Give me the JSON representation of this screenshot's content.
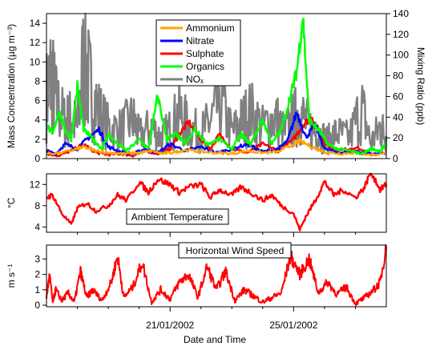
{
  "colors": {
    "ammonium": "#ffa500",
    "nitrate": "#0000ff",
    "sulphate": "#ff0000",
    "organics": "#00ff00",
    "nox": "#808080",
    "temperature": "#ff0000",
    "wind": "#ff0000"
  },
  "xaxis": {
    "label": "Date and Time",
    "ticks": [
      {
        "label": "21/01/2002",
        "x": 4
      },
      {
        "label": "25/01/2002",
        "x": 8
      }
    ],
    "minor_ticks": [
      1,
      2,
      3,
      5,
      6,
      7,
      9,
      10
    ],
    "xlim": [
      0,
      11
    ]
  },
  "chart_data": [
    {
      "type": "line",
      "panel": "aerosol-and-nox",
      "ylabel": "Mass Concentration (µg m⁻³)",
      "y2label": "Mixing Ratio (ppb)",
      "ylim": [
        0,
        15
      ],
      "yticks": [
        "0",
        "2",
        "4",
        "6",
        "8",
        "10",
        "12",
        "14"
      ],
      "y2lim": [
        0,
        140
      ],
      "y2ticks": [
        "0",
        "20",
        "40",
        "60",
        "80",
        "100",
        "120",
        "140"
      ],
      "legend_position": "top-center",
      "series": [
        {
          "name": "Ammonium",
          "axis": "left",
          "color_key": "ammonium",
          "x": [
            0,
            0.5,
            1,
            1.2,
            1.6,
            2,
            2.5,
            3,
            3.4,
            3.8,
            4.2,
            4.5,
            5,
            5.5,
            6,
            6.5,
            7,
            7.5,
            8,
            8.2,
            8.6,
            9,
            9.5,
            10,
            10.4,
            11
          ],
          "y": [
            0.5,
            0.6,
            1.0,
            1.2,
            0.8,
            0.6,
            0.5,
            0.6,
            0.8,
            0.5,
            0.7,
            0.9,
            0.7,
            0.6,
            0.5,
            0.8,
            0.6,
            0.7,
            1.5,
            1.8,
            1.2,
            0.7,
            0.5,
            0.6,
            0.4,
            0.5
          ]
        },
        {
          "name": "Nitrate",
          "axis": "left",
          "color_key": "nitrate",
          "x": [
            0,
            0.3,
            0.6,
            1,
            1.3,
            1.7,
            2,
            2.4,
            2.8,
            3.2,
            3.6,
            4,
            4.5,
            5,
            5.5,
            6,
            6.5,
            7,
            7.5,
            7.8,
            8.1,
            8.4,
            8.7,
            9,
            9.5,
            10,
            10.5,
            11
          ],
          "y": [
            0.8,
            0.5,
            1.5,
            1.0,
            2.0,
            3.0,
            1.2,
            0.7,
            0.5,
            1.0,
            0.6,
            1.5,
            0.8,
            1.2,
            0.6,
            1.0,
            1.5,
            0.7,
            1.0,
            1.8,
            4.8,
            2.2,
            3.5,
            1.0,
            0.6,
            0.8,
            0.5,
            0.6
          ]
        },
        {
          "name": "Sulphate",
          "axis": "left",
          "color_key": "sulphate",
          "x": [
            0,
            0.4,
            0.8,
            1.2,
            1.6,
            2,
            2.4,
            2.8,
            3.2,
            3.6,
            4,
            4.3,
            4.6,
            5,
            5.3,
            5.6,
            6,
            6.5,
            7,
            7.5,
            8,
            8.3,
            8.6,
            9,
            9.5,
            10,
            10.5,
            11
          ],
          "y": [
            0.5,
            0.3,
            0.8,
            1.5,
            0.6,
            0.4,
            0.5,
            0.3,
            0.8,
            0.5,
            1.0,
            2.5,
            3.8,
            2.0,
            1.0,
            2.5,
            1.0,
            0.6,
            1.5,
            0.8,
            2.0,
            3.5,
            4.3,
            1.5,
            0.8,
            1.2,
            0.4,
            0.5
          ]
        },
        {
          "name": "Organics",
          "axis": "left",
          "color_key": "organics",
          "x": [
            0,
            0.2,
            0.4,
            0.6,
            0.8,
            1,
            1.2,
            1.5,
            1.8,
            2,
            2.3,
            2.6,
            3,
            3.3,
            3.6,
            3.9,
            4.2,
            4.5,
            4.8,
            5.2,
            5.6,
            6,
            6.3,
            6.6,
            7,
            7.3,
            7.6,
            7.9,
            8.1,
            8.3,
            8.5,
            8.8,
            9.1,
            9.4,
            9.8,
            10.2,
            10.5,
            10.8,
            11
          ],
          "y": [
            3.5,
            2.5,
            5.0,
            3.0,
            2.0,
            7.5,
            3.0,
            2.0,
            1.0,
            2.5,
            1.5,
            0.8,
            2.0,
            1.0,
            6.5,
            2.0,
            2.5,
            1.5,
            3.0,
            1.5,
            2.0,
            1.0,
            2.5,
            1.5,
            4.0,
            1.5,
            3.0,
            6.5,
            9.0,
            14.8,
            4.0,
            3.0,
            1.5,
            1.0,
            0.8,
            0.5,
            1.0,
            0.8,
            1.5
          ]
        },
        {
          "name": "NOₓ",
          "axis": "right",
          "color_key": "nox",
          "x": [
            0,
            0.15,
            0.3,
            0.6,
            0.8,
            1,
            1.2,
            1.4,
            1.7,
            2,
            2.4,
            2.8,
            3,
            3.4,
            3.7,
            4,
            4.3,
            4.6,
            5,
            5.3,
            5.6,
            6,
            6.3,
            6.6,
            7,
            7.4,
            7.7,
            8,
            8.2,
            8.5,
            8.8,
            9.1,
            9.4,
            9.8,
            10.2,
            10.5,
            10.8,
            11
          ],
          "y": [
            60,
            80,
            55,
            35,
            40,
            30,
            95,
            70,
            45,
            30,
            28,
            38,
            22,
            30,
            20,
            28,
            45,
            30,
            25,
            35,
            55,
            25,
            35,
            45,
            30,
            40,
            25,
            38,
            45,
            30,
            25,
            18,
            25,
            20,
            50,
            15,
            30,
            22
          ]
        }
      ]
    },
    {
      "type": "line",
      "panel": "temperature",
      "ylabel": "°C",
      "ylim": [
        3,
        14
      ],
      "yticks": [
        "4",
        "8",
        "12"
      ],
      "annotation": "Ambient Temperature",
      "series": [
        {
          "name": "Ambient Temperature",
          "color_key": "temperature",
          "x": [
            0,
            0.2,
            0.5,
            0.8,
            1,
            1.3,
            1.6,
            2,
            2.3,
            2.6,
            3,
            3.3,
            3.6,
            4,
            4.3,
            4.6,
            5,
            5.3,
            5.6,
            6,
            6.3,
            6.6,
            7,
            7.3,
            7.6,
            8,
            8.2,
            8.4,
            8.7,
            9,
            9.3,
            9.6,
            10,
            10.3,
            10.5,
            10.8,
            11
          ],
          "y": [
            9.5,
            10.0,
            6.5,
            4.5,
            7.5,
            8.5,
            7.0,
            8.0,
            10.0,
            9.0,
            12.5,
            10.5,
            13.0,
            12.0,
            10.5,
            11.5,
            12.0,
            9.5,
            11.0,
            10.0,
            11.5,
            10.5,
            9.0,
            10.0,
            8.0,
            6.5,
            3.5,
            6.0,
            9.0,
            12.5,
            10.0,
            11.0,
            9.5,
            11.5,
            14.5,
            11.0,
            12.0
          ]
        }
      ]
    },
    {
      "type": "line",
      "panel": "wind",
      "ylabel": "m s⁻¹",
      "ylim": [
        -0.1,
        3.9
      ],
      "yticks": [
        "0",
        "1",
        "2",
        "3"
      ],
      "annotation": "Horizontal Wind Speed",
      "series": [
        {
          "name": "Horizontal Wind Speed",
          "color_key": "wind",
          "x": [
            0,
            0.1,
            0.2,
            0.3,
            0.5,
            0.7,
            0.9,
            1.1,
            1.3,
            1.5,
            1.8,
            2.1,
            2.3,
            2.5,
            2.8,
            3.1,
            3.4,
            3.7,
            4,
            4.3,
            4.6,
            4.9,
            5.2,
            5.5,
            5.8,
            6.1,
            6.4,
            6.7,
            7,
            7.3,
            7.6,
            7.9,
            8.2,
            8.5,
            8.8,
            9.1,
            9.4,
            9.7,
            10,
            10.3,
            10.6,
            10.8,
            11
          ],
          "y": [
            0.5,
            2.0,
            0.2,
            1.0,
            0.3,
            0.8,
            0.2,
            2.2,
            0.5,
            1.0,
            0.3,
            1.5,
            3.2,
            0.5,
            1.2,
            2.8,
            0.2,
            1.0,
            0.4,
            1.5,
            2.0,
            0.5,
            2.5,
            1.0,
            2.2,
            0.3,
            1.0,
            0.6,
            0.2,
            0.5,
            0.8,
            3.2,
            2.0,
            3.0,
            0.8,
            1.5,
            0.7,
            1.2,
            0.1,
            0.5,
            1.0,
            1.5,
            3.8
          ]
        }
      ]
    }
  ]
}
